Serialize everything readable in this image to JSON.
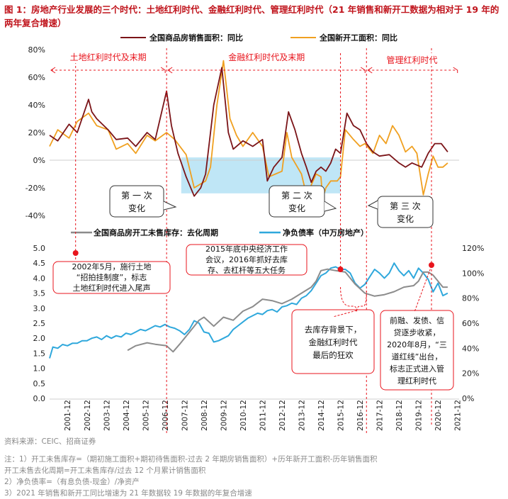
{
  "title": "图 1：房地产行业发展的三个时代：土地红利时代、金融红利时代、管理红利时代（21 年销售和新开工数据为相对于 19 年的两年复合增速）",
  "source": "资料来源：CEIC、招商证券",
  "notes": [
    "注：1）开工未售库存=（期初施工面积+期初待售面积-过去 2 年期房销售面积）+历年新开工面积-历年销售面积",
    "开工未售去化周期=开工未售库存/过去 12 个月累计销售面积",
    "2）净负债率=（有息负债-现金）/净资产",
    "3）2021 年销售和新开工同比增速为 21 年数据较 19 年数据的年复合增速"
  ],
  "colors": {
    "sales": "#7b1418",
    "starts": "#f0a020",
    "destock": "#8c8c8c",
    "netdebt": "#2fa8dc",
    "accent": "#e8141c",
    "shade": "#bfe6f6"
  },
  "era_labels": [
    "土地红利时代及末期",
    "金融红利时代及末期",
    "管理红利时代"
  ],
  "callouts": {
    "change1": "第 一 次\n变化",
    "change2": "第 二 次\n变化",
    "change3": "第 三 次\n变化",
    "e2002": "2002年5月，施行土地\n“招拍挂制度”，标志\n土地红利时代进入尾声",
    "e2015": "2015年底中央经济工作\n会议，2016年抓好去库\n存、去杠杆等五大任务",
    "e2016": "去库存背景下，\n金融红利时代\n最后的狂欢",
    "e2020": "前融、发债、信\n贷逐步收紧，\n2020年8月，“三\n道红线”出台，\n标志正式进入管\n理红利时代"
  },
  "chart_data": [
    {
      "type": "line",
      "series": [
        {
          "name": "全国商品房销售面积：同比",
          "x": [
            "2001-01",
            "2001-06",
            "2002-01",
            "2002-06",
            "2003-01",
            "2003-03",
            "2003-06",
            "2004-01",
            "2004-06",
            "2005-01",
            "2005-06",
            "2006-01",
            "2006-06",
            "2007-01",
            "2007-04",
            "2007-08",
            "2008-01",
            "2008-06",
            "2008-10",
            "2009-01",
            "2009-06",
            "2009-11",
            "2010-03",
            "2010-06",
            "2010-12",
            "2011-06",
            "2011-12",
            "2012-03",
            "2012-07",
            "2012-12",
            "2013-04",
            "2013-08",
            "2013-12",
            "2014-03",
            "2014-06",
            "2014-09",
            "2014-12",
            "2015-03",
            "2015-06",
            "2015-09",
            "2015-12",
            "2016-04",
            "2016-08",
            "2016-12",
            "2017-04",
            "2017-08",
            "2017-12",
            "2018-06",
            "2018-12",
            "2019-04",
            "2019-08",
            "2019-12",
            "2020-02",
            "2020-06",
            "2020-10",
            "2021-02",
            "2021-06"
          ],
          "values": [
            18,
            14,
            26,
            20,
            44,
            35,
            30,
            22,
            15,
            16,
            10,
            20,
            15,
            50,
            25,
            5,
            -12,
            -26,
            -20,
            -10,
            40,
            67,
            20,
            8,
            14,
            10,
            15,
            -15,
            -5,
            2,
            35,
            22,
            5,
            -5,
            -16,
            -8,
            -5,
            -8,
            -2,
            8,
            5,
            34,
            25,
            22,
            12,
            6,
            3,
            4,
            -2,
            -5,
            -2,
            -4,
            -5,
            5,
            12,
            12,
            6
          ]
        },
        {
          "name": "全国新开工面积：同比",
          "x": [
            "2001-01",
            "2001-06",
            "2002-01",
            "2002-06",
            "2003-01",
            "2003-06",
            "2004-01",
            "2004-06",
            "2005-01",
            "2005-06",
            "2006-01",
            "2006-06",
            "2007-01",
            "2007-06",
            "2008-01",
            "2008-06",
            "2009-01",
            "2009-04",
            "2009-08",
            "2009-12",
            "2010-04",
            "2010-08",
            "2010-12",
            "2011-06",
            "2011-12",
            "2012-04",
            "2012-08",
            "2012-12",
            "2013-03",
            "2013-06",
            "2013-12",
            "2014-03",
            "2014-06",
            "2014-09",
            "2014-12",
            "2015-01",
            "2015-03",
            "2015-06",
            "2015-10",
            "2015-12",
            "2016-03",
            "2016-08",
            "2016-12",
            "2017-03",
            "2017-08",
            "2017-12",
            "2018-04",
            "2018-08",
            "2018-12",
            "2019-04",
            "2019-08",
            "2019-11",
            "2020-03",
            "2020-06",
            "2020-09",
            "2020-12",
            "2021-03",
            "2021-06"
          ],
          "values": [
            10,
            22,
            16,
            28,
            34,
            25,
            22,
            8,
            12,
            5,
            18,
            14,
            20,
            15,
            4,
            -20,
            -15,
            -5,
            40,
            72,
            30,
            18,
            10,
            20,
            10,
            -12,
            -10,
            -8,
            20,
            2,
            -10,
            -25,
            -18,
            -10,
            -12,
            -28,
            -20,
            -15,
            -15,
            -12,
            22,
            15,
            10,
            12,
            5,
            18,
            12,
            25,
            18,
            6,
            10,
            5,
            -25,
            -10,
            3,
            -5,
            -5,
            -2
          ]
        }
      ],
      "ylim": [
        -40,
        80
      ],
      "yticks": [
        "-40%",
        "-20%",
        "0%",
        "20%",
        "40%",
        "60%",
        "80%"
      ]
    },
    {
      "type": "line",
      "series": [
        {
          "name": "全国商品房开工未售库存：去化周期",
          "x": [
            "2005-01",
            "2005-06",
            "2006-01",
            "2006-06",
            "2007-01",
            "2007-05",
            "2007-09",
            "2008-03",
            "2008-09",
            "2008-12",
            "2009-06",
            "2009-12",
            "2010-06",
            "2010-12",
            "2011-06",
            "2011-12",
            "2012-06",
            "2012-12",
            "2013-06",
            "2013-12",
            "2014-06",
            "2014-09",
            "2014-12",
            "2015-04",
            "2015-09",
            "2016-03",
            "2016-09",
            "2017-03",
            "2017-09",
            "2018-03",
            "2018-09",
            "2019-03",
            "2019-09",
            "2019-12",
            "2020-03",
            "2020-06",
            "2020-09",
            "2020-12",
            "2021-03",
            "2021-06"
          ],
          "values": [
            1.6,
            1.75,
            1.85,
            1.8,
            1.75,
            1.55,
            1.8,
            2.2,
            2.6,
            2.7,
            2.4,
            2.7,
            2.6,
            2.9,
            3.05,
            3.3,
            3.25,
            3.15,
            3.3,
            3.5,
            3.7,
            3.9,
            4.25,
            4.3,
            4.25,
            4.2,
            3.8,
            3.5,
            3.4,
            3.45,
            3.55,
            3.7,
            3.75,
            3.9,
            4.2,
            4.2,
            4.1,
            3.9,
            3.7,
            3.7
          ]
        },
        {
          "name": "净负债率（中万房地产）",
          "x": [
            "2001-01",
            "2001-03",
            "2001-06",
            "2001-09",
            "2001-12",
            "2002-03",
            "2002-06",
            "2002-09",
            "2002-12",
            "2003-03",
            "2003-06",
            "2003-09",
            "2003-12",
            "2004-03",
            "2004-06",
            "2004-09",
            "2004-12",
            "2005-03",
            "2005-06",
            "2005-09",
            "2005-12",
            "2006-03",
            "2006-06",
            "2006-09",
            "2006-12",
            "2007-03",
            "2007-06",
            "2007-09",
            "2007-12",
            "2008-03",
            "2008-06",
            "2008-09",
            "2008-12",
            "2009-03",
            "2009-06",
            "2009-09",
            "2009-12",
            "2010-03",
            "2010-06",
            "2010-09",
            "2010-12",
            "2011-03",
            "2011-06",
            "2011-09",
            "2011-12",
            "2012-03",
            "2012-06",
            "2012-09",
            "2012-12",
            "2013-03",
            "2013-06",
            "2013-09",
            "2013-12",
            "2014-03",
            "2014-06",
            "2014-09",
            "2014-12",
            "2015-03",
            "2015-06",
            "2015-09",
            "2015-12",
            "2016-03",
            "2016-06",
            "2016-09",
            "2016-12",
            "2017-03",
            "2017-06",
            "2017-09",
            "2017-12",
            "2018-03",
            "2018-06",
            "2018-09",
            "2018-12",
            "2019-03",
            "2019-06",
            "2019-09",
            "2019-12",
            "2020-03",
            "2020-06",
            "2020-09",
            "2020-12",
            "2021-03",
            "2021-06"
          ],
          "values": [
            32,
            41,
            40,
            43,
            42,
            44,
            44,
            46,
            46,
            48,
            49,
            47,
            50,
            48,
            50,
            49,
            52,
            51,
            53,
            55,
            54,
            56,
            58,
            57,
            59,
            57,
            56,
            54,
            51,
            55,
            62,
            60,
            53,
            52,
            45,
            46,
            48,
            50,
            55,
            58,
            61,
            64,
            66,
            68,
            67,
            70,
            71,
            69,
            73,
            74,
            76,
            75,
            80,
            82,
            86,
            92,
            98,
            100,
            104,
            105,
            103,
            103,
            100,
            92,
            88,
            91,
            97,
            103,
            100,
            96,
            100,
            108,
            102,
            98,
            102,
            96,
            104,
            100,
            95,
            85,
            92,
            82,
            84
          ]
        }
      ],
      "ylim_left": [
        0,
        5
      ],
      "yticks_left": [
        "0.0",
        "0.5",
        "1.0",
        "1.5",
        "2.0",
        "2.5",
        "3.0",
        "3.5",
        "4.0",
        "4.5",
        "5.0"
      ],
      "ylim_right": [
        0,
        120
      ],
      "yticks_right": [
        "0%",
        "20%",
        "40%",
        "60%",
        "80%",
        "100%",
        "120%"
      ],
      "xticks": [
        "2001-12",
        "2002-12",
        "2003-12",
        "2004-12",
        "2005-12",
        "2006-12",
        "2007-12",
        "2008-12",
        "2009-12",
        "2010-12",
        "2011-12",
        "2012-12",
        "2013-12",
        "2014-12",
        "2015-12",
        "2016-12",
        "2017-12",
        "2018-12",
        "2019-12",
        "2020-12",
        "2021-12"
      ]
    }
  ]
}
